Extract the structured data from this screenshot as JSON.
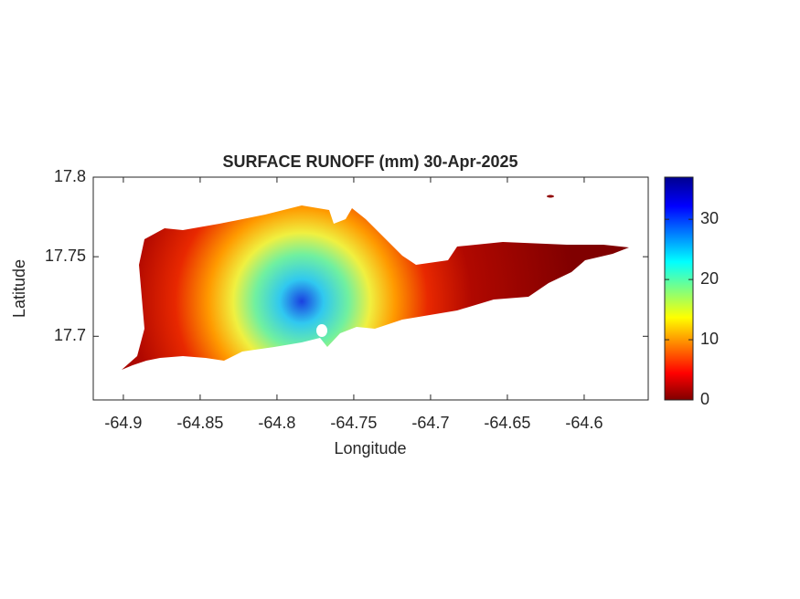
{
  "chart_data": {
    "type": "map",
    "title": "SURFACE RUNOFF (mm) 30-Apr-2025",
    "x_label": "Longitude",
    "y_label": "Latitude",
    "xlim": [
      -64.9196,
      -64.5583
    ],
    "xticks": [
      -64.9,
      -64.85,
      -64.8,
      -64.75,
      -64.7,
      -64.65,
      -64.6
    ],
    "ylim": [
      17.66,
      17.8
    ],
    "yticks": [
      17.7,
      17.75,
      17.8
    ],
    "colorbar": {
      "clim": [
        0,
        37
      ],
      "ticks": [
        0,
        10,
        20,
        30
      ],
      "colormap": "jet"
    }
  }
}
